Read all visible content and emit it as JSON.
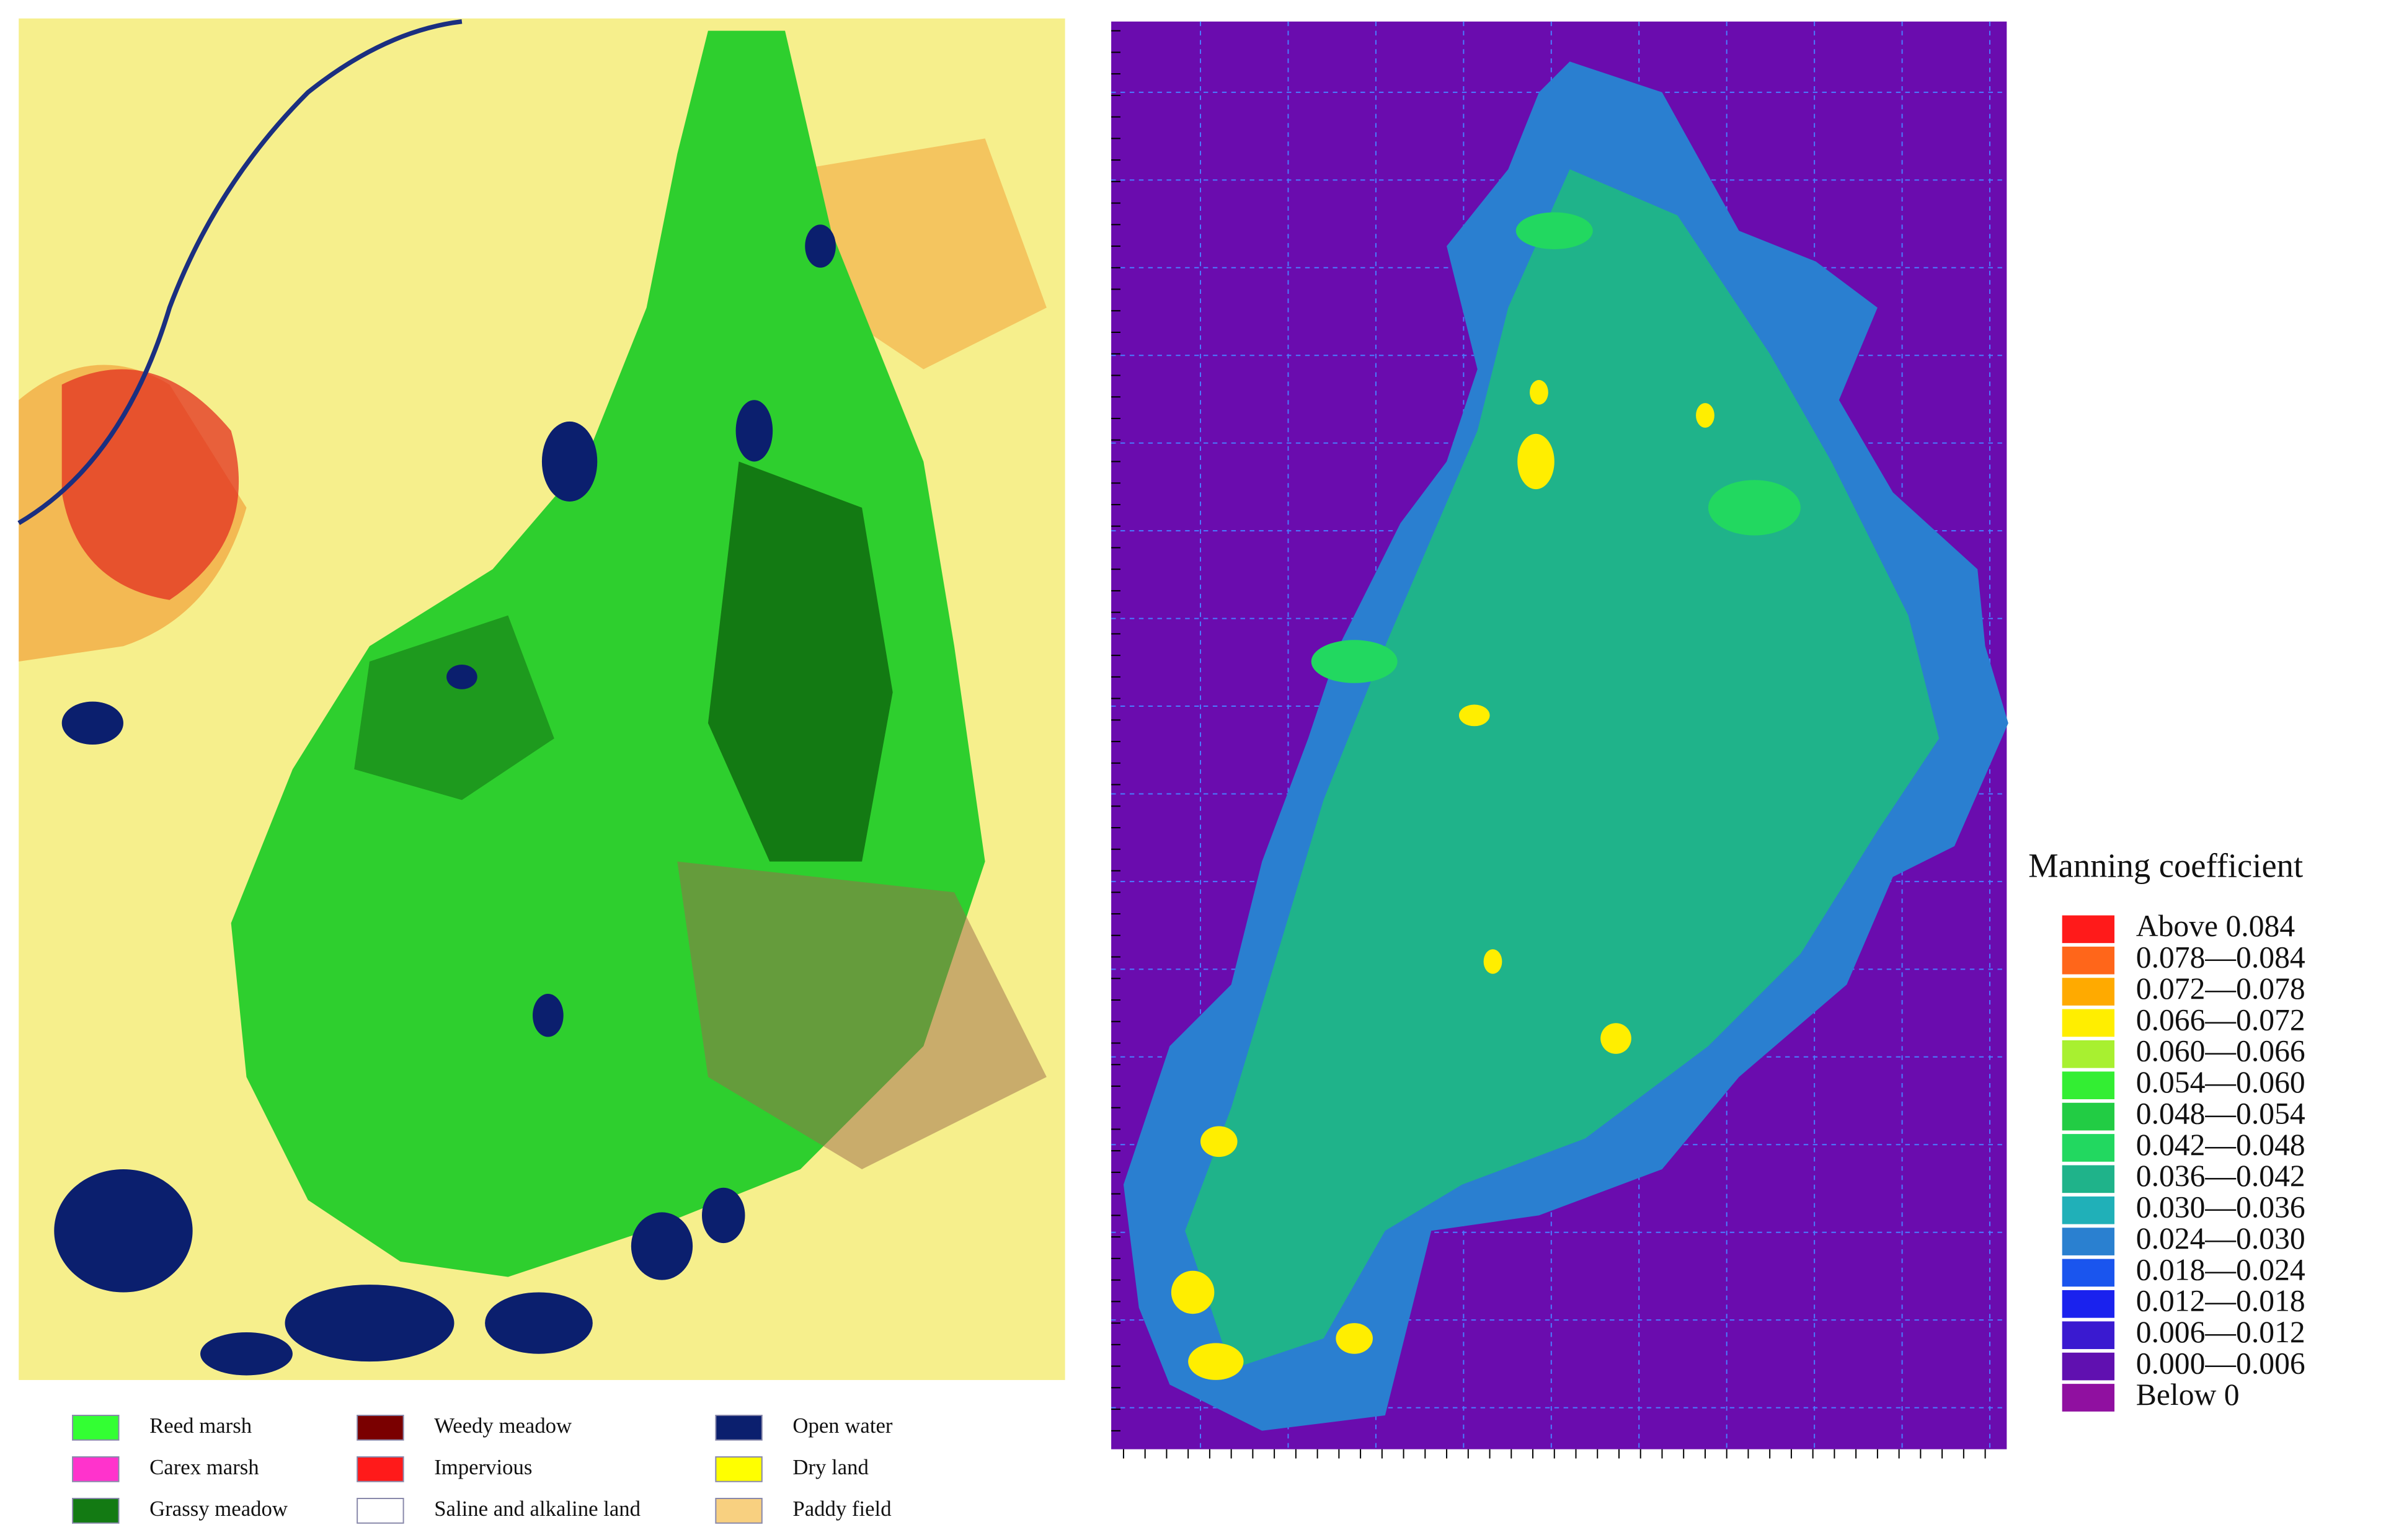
{
  "land_use_legend": {
    "items": [
      {
        "label": "Reed marsh",
        "color": "#33ff33"
      },
      {
        "label": "Carex marsh",
        "color": "#ff33cc"
      },
      {
        "label": "Grassy meadow",
        "color": "#137a13"
      },
      {
        "label": "Weedy meadow",
        "color": "#7a0000"
      },
      {
        "label": "Impervious",
        "color": "#ff1a1a"
      },
      {
        "label": "Saline and alkaline land",
        "color": "#ffffff"
      },
      {
        "label": "Open water",
        "color": "#0b1f6e"
      },
      {
        "label": "Dry land",
        "color": "#ffff00"
      },
      {
        "label": "Paddy field",
        "color": "#f8d080"
      }
    ]
  },
  "manning_legend": {
    "title": "Manning coefficient",
    "items": [
      {
        "label": "Above 0.084",
        "color": "#ff1a1a"
      },
      {
        "label": "0.078—0.084",
        "color": "#ff661a"
      },
      {
        "label": "0.072—0.078",
        "color": "#ffaa00"
      },
      {
        "label": "0.066—0.072",
        "color": "#ffee00"
      },
      {
        "label": "0.060—0.066",
        "color": "#a8f030"
      },
      {
        "label": "0.054—0.060",
        "color": "#33ee33"
      },
      {
        "label": "0.048—0.054",
        "color": "#22cc44"
      },
      {
        "label": "0.042—0.048",
        "color": "#22d860"
      },
      {
        "label": "0.036—0.042",
        "color": "#1fb38a"
      },
      {
        "label": "0.030—0.036",
        "color": "#20b0b8"
      },
      {
        "label": "0.024—0.030",
        "color": "#2a80d0"
      },
      {
        "label": "0.018—0.024",
        "color": "#1a55ee"
      },
      {
        "label": "0.012—0.018",
        "color": "#1a22ee"
      },
      {
        "label": "0.006—0.012",
        "color": "#3a1ad0"
      },
      {
        "label": "0.000—0.006",
        "color": "#6010b0"
      },
      {
        "label": "Below 0",
        "color": "#9010a0"
      }
    ]
  }
}
